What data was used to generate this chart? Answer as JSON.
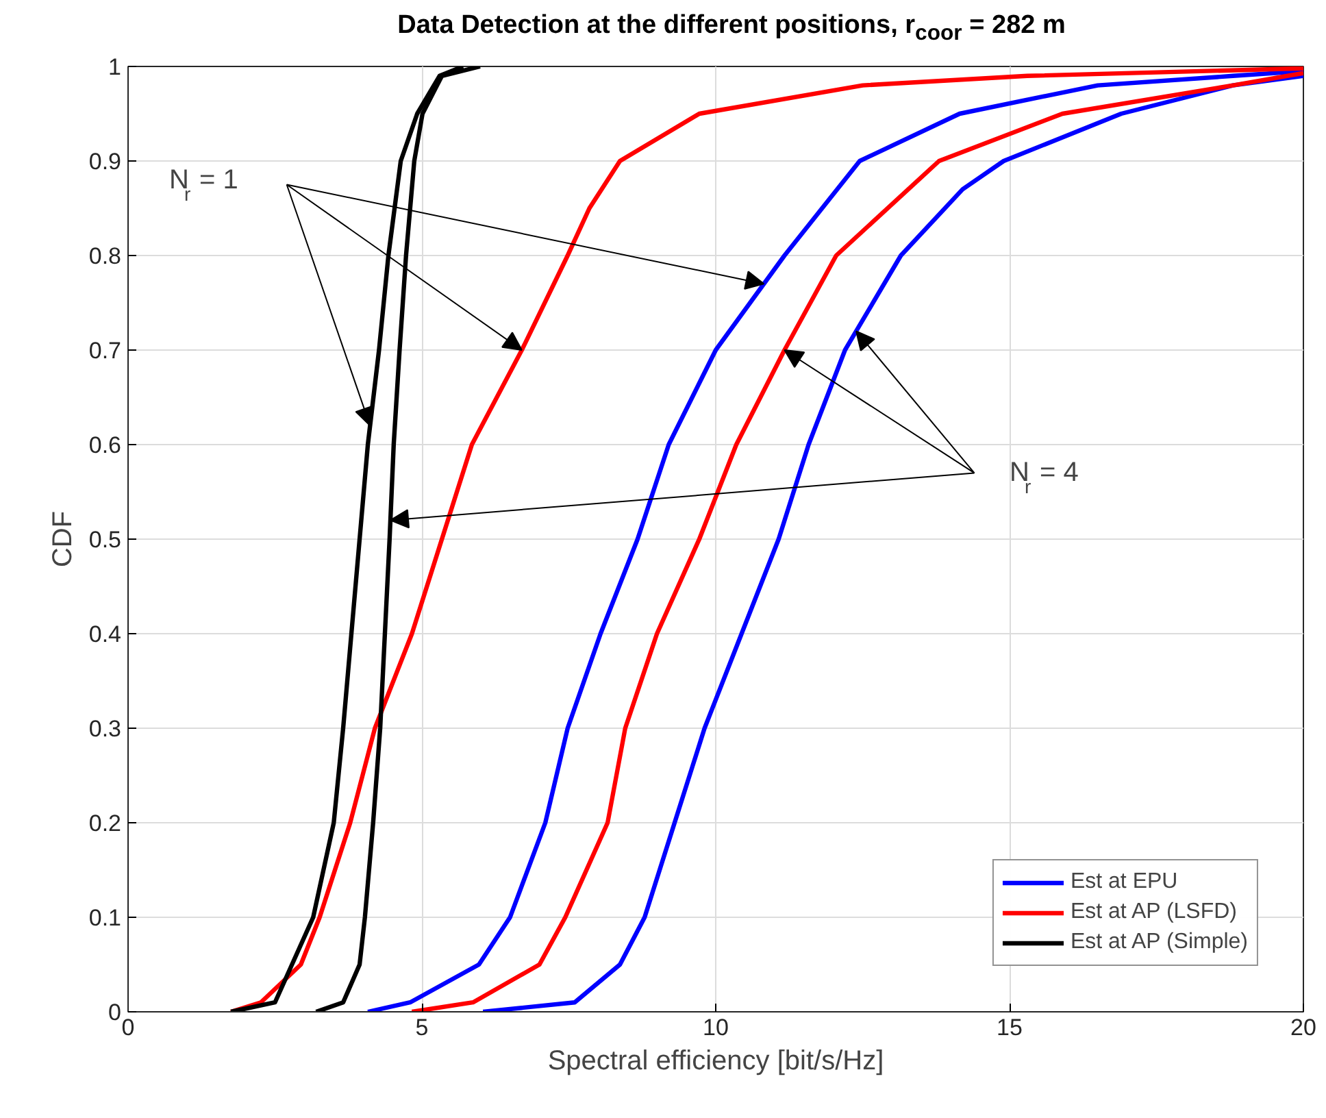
{
  "chart_data": {
    "type": "line",
    "title": "Data Detection at the different positions, r$_{coor}$ = 282 m",
    "xlabel": "Spectral efficiency [bit/s/Hz]",
    "ylabel": "CDF",
    "xlim": [
      0,
      20
    ],
    "ylim": [
      0,
      1
    ],
    "xticks": [
      0,
      5,
      10,
      15,
      20
    ],
    "yticks": [
      0,
      0.1,
      0.2,
      0.3,
      0.4,
      0.5,
      0.6,
      0.7,
      0.8,
      0.9,
      1
    ],
    "grid": true,
    "legend": "bottom right",
    "line_style": "solid",
    "marker": "none",
    "annotations": [
      "N$_{r}$ = 1",
      {
        "text": "N$_{r}$ = 4",
        "x": 11.17,
        "y": 0.7
      }
    ],
    "series": [
      {
        "name": "Est at EPU",
        "color": "#0000ff",
        "x": [
          4.08,
          4.8,
          5.97,
          6.5,
          7.1,
          7.48,
          8.04,
          8.67,
          9.2,
          10.0,
          11.17,
          12.45,
          14.15,
          16.5,
          18.8,
          20
        ],
        "values": [
          0,
          0.01,
          0.05,
          0.1,
          0.2,
          0.3,
          0.4,
          0.5,
          0.6,
          0.7,
          0.8,
          0.9,
          0.95,
          0.98,
          0.99,
          0.995
        ]
      },
      {
        "color": "#0000ff",
        "x": [
          6.04,
          7.6,
          8.37,
          8.79,
          9.3,
          9.81,
          10.44,
          11.07,
          11.58,
          12.2,
          13.15,
          14.2,
          14.9,
          16.9,
          18.8,
          20
        ],
        "values": [
          0,
          0.01,
          0.05,
          0.1,
          0.2,
          0.3,
          0.4,
          0.5,
          0.6,
          0.7,
          0.8,
          0.87,
          0.9,
          0.95,
          0.98,
          0.99
        ]
      },
      {
        "name": "Est at AP (LSFD)",
        "color": "#ff0000",
        "x": [
          1.75,
          2.26,
          2.94,
          3.26,
          3.78,
          4.2,
          4.83,
          5.34,
          5.85,
          6.7,
          7.48,
          7.85,
          8.37,
          9.72,
          12.5,
          15.3,
          20
        ],
        "values": [
          0,
          0.01,
          0.05,
          0.1,
          0.2,
          0.3,
          0.4,
          0.5,
          0.6,
          0.7,
          0.8,
          0.85,
          0.9,
          0.95,
          0.98,
          0.99,
          0.998
        ]
      },
      {
        "color": "#ff0000",
        "x": [
          4.83,
          5.87,
          7.0,
          7.44,
          8.16,
          8.46,
          9.0,
          9.72,
          10.35,
          11.17,
          12.05,
          13.8,
          15.9,
          18.8,
          20
        ],
        "values": [
          0,
          0.01,
          0.05,
          0.1,
          0.2,
          0.3,
          0.4,
          0.5,
          0.6,
          0.7,
          0.8,
          0.9,
          0.95,
          0.98,
          0.993
        ]
      },
      {
        "name": "Est at AP (Simple)",
        "color": "#000000",
        "x": [
          1.75,
          2.5,
          3.15,
          3.5,
          3.66,
          3.94,
          4.08,
          4.27,
          4.43,
          4.64,
          4.92,
          5.3,
          5.7
        ],
        "values": [
          0,
          0.01,
          0.1,
          0.2,
          0.3,
          0.5,
          0.6,
          0.7,
          0.8,
          0.9,
          0.95,
          0.99,
          1
        ]
      },
      {
        "color": "#000000",
        "x": [
          3.2,
          3.66,
          3.94,
          4.03,
          4.17,
          4.29,
          4.45,
          4.52,
          4.62,
          4.73,
          4.87,
          5.01,
          5.34,
          5.99
        ],
        "values": [
          0,
          0.01,
          0.05,
          0.1,
          0.2,
          0.3,
          0.5,
          0.6,
          0.7,
          0.8,
          0.9,
          0.95,
          0.99,
          1
        ]
      }
    ]
  }
}
